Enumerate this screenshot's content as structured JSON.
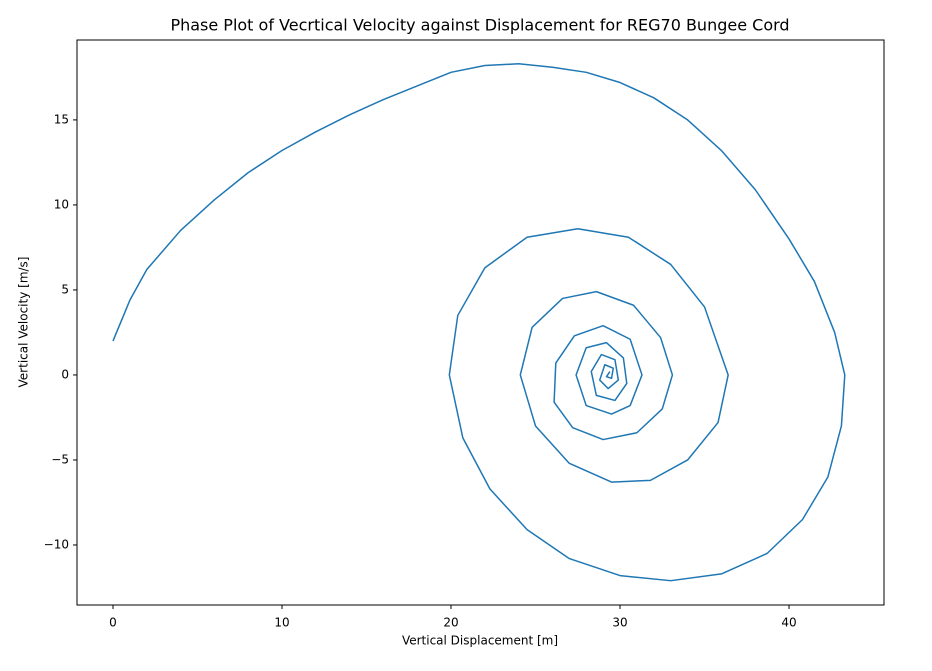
{
  "chart_data": {
    "type": "line",
    "title": "Phase Plot of Vecrtical Velocity against Displacement for REG70 Bungee Cord",
    "xlabel": "Vertical Displacement [m]",
    "ylabel": "Vertical Velocity [m/s]",
    "color": "#1f77b4",
    "xlim": [
      -2.13,
      45.62
    ],
    "ylim": [
      -13.53,
      19.7
    ],
    "xticks": [
      0,
      10,
      20,
      30,
      40
    ],
    "yticks": [
      {
        "value": -10,
        "label": "−10"
      },
      {
        "value": -5,
        "label": "−5"
      },
      0,
      5,
      10,
      15
    ],
    "x": [
      0,
      1,
      2,
      4,
      6,
      8,
      10,
      12,
      14,
      16,
      18,
      20,
      22,
      24,
      26,
      28,
      30,
      32,
      34,
      36,
      38,
      40,
      41.5,
      42.7,
      43.3,
      43.1,
      42.3,
      40.8,
      38.7,
      36,
      33,
      30,
      27,
      24.5,
      22.3,
      20.7,
      19.9,
      20.4,
      22,
      24.5,
      27.5,
      30.5,
      33,
      35,
      36.4,
      35.8,
      34,
      31.8,
      29.5,
      27,
      25,
      24.1,
      24.8,
      26.6,
      28.6,
      30.8,
      32.4,
      33.1,
      32.5,
      31,
      29,
      27.2,
      26.1,
      26.2,
      27.3,
      29,
      30.6,
      31.3,
      30.6,
      29.5,
      28,
      27.4,
      28,
      29.2,
      30.2,
      30.4,
      29.7,
      28.6,
      28.3,
      28.9,
      29.7,
      29.9,
      29.3,
      28.8,
      29.1,
      29.6,
      29.5,
      29.2,
      29.4
    ],
    "values": [
      2,
      4.4,
      6.2,
      8.5,
      10.3,
      11.9,
      13.2,
      14.3,
      15.3,
      16.2,
      17,
      17.8,
      18.2,
      18.3,
      18.1,
      17.8,
      17.2,
      16.3,
      15,
      13.2,
      10.9,
      8,
      5.5,
      2.5,
      0,
      -3,
      -6,
      -8.5,
      -10.5,
      -11.7,
      -12.1,
      -11.8,
      -10.8,
      -9.1,
      -6.7,
      -3.7,
      0,
      3.5,
      6.3,
      8.1,
      8.6,
      8.1,
      6.5,
      4,
      0,
      -2.8,
      -5,
      -6.2,
      -6.3,
      -5.2,
      -3,
      0,
      2.8,
      4.5,
      4.9,
      4.1,
      2.2,
      0,
      -2,
      -3.4,
      -3.8,
      -3.1,
      -1.6,
      0.7,
      2.3,
      2.9,
      2.1,
      0,
      -1.8,
      -2.3,
      -1.8,
      0,
      1.6,
      1.9,
      1,
      -0.5,
      -1.5,
      -1.2,
      0.2,
      1.2,
      0.9,
      -0.3,
      -0.8,
      -0.3,
      0.6,
      0.4,
      -0.2,
      -0.1,
      0.2
    ]
  }
}
